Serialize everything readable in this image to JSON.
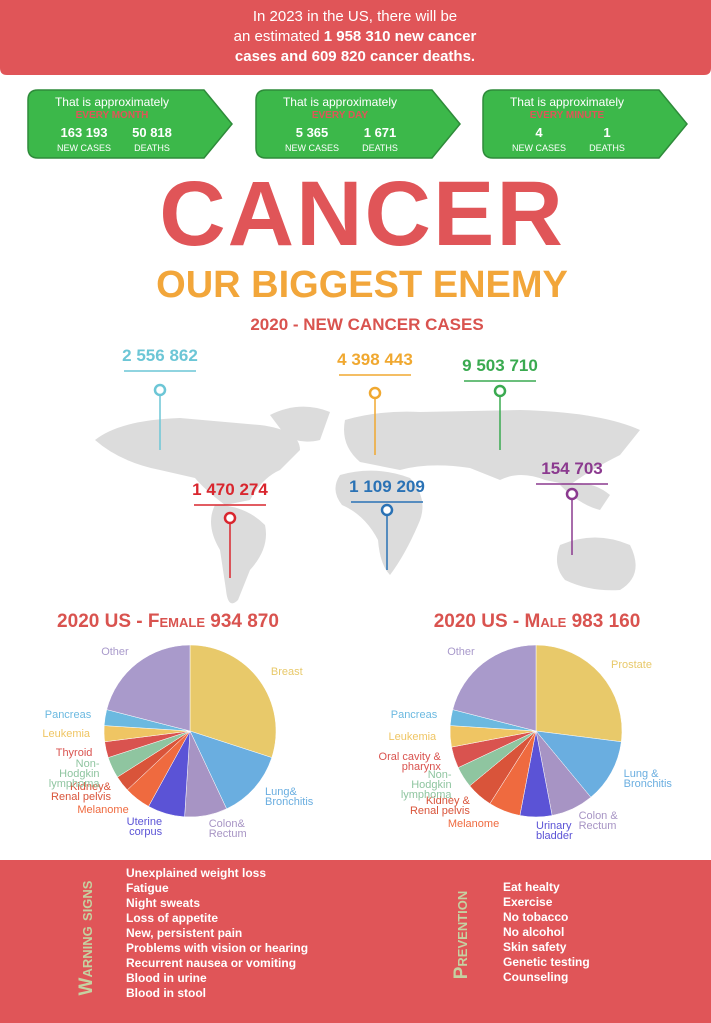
{
  "header": {
    "lines": [
      [
        {
          "text": "In 2023 in the US, there will be",
          "bold": false
        }
      ],
      [
        {
          "text": "an estimated",
          "bold": false
        },
        {
          "text": "1 958 310",
          "bold": true
        },
        {
          "text": "new cancer",
          "bold": true
        }
      ],
      [
        {
          "text": "cases and",
          "bold": true
        },
        {
          "text": "609 820",
          "bold": true
        },
        {
          "text": "cancer deaths.",
          "bold": true
        }
      ]
    ]
  },
  "stats": [
    {
      "intro": "That is approximately",
      "period": "EVERY MONTH",
      "cases": "163 193",
      "deaths": "50 818",
      "cases_label": "NEW CASES",
      "deaths_label": "DEATHS"
    },
    {
      "intro": "That is approximately",
      "period": "EVERY DAY",
      "cases": "5 365",
      "deaths": "1 671",
      "cases_label": "NEW CASES",
      "deaths_label": "DEATHS"
    },
    {
      "intro": "That is approximately",
      "period": "EVERY MINUTE",
      "cases": "4",
      "deaths": "1",
      "cases_label": "NEW CASES",
      "deaths_label": "DEATHS"
    }
  ],
  "title": "CANCER",
  "subtitle": "OUR BIGGEST ENEMY",
  "map": {
    "title": "2020 - NEW CANCER CASES",
    "markers": [
      {
        "value": "2 556 862",
        "color": "#6cc6d6"
      },
      {
        "value": "4 398 443",
        "color": "#f0a830"
      },
      {
        "value": "9 503 710",
        "color": "#3aaa50"
      },
      {
        "value": "154 703",
        "color": "#8b3a8f"
      },
      {
        "value": "1 470 274",
        "color": "#d9262e"
      },
      {
        "value": "1 109 209",
        "color": "#2a72b5"
      }
    ]
  },
  "chart_data": [
    {
      "type": "pie",
      "title": "2020 US - Female 934 870",
      "categories": [
        "Breast",
        "Lung& Bronchitis",
        "Colon& Rectum",
        "Uterine corpus",
        "Melanome",
        "Kidney& Renal pelvis",
        "Non-Hodgkin lymphoma",
        "Thyroid",
        "Leukemia",
        "Pancreas",
        "Other"
      ],
      "values": [
        30,
        13,
        8,
        7,
        5,
        3,
        4,
        3,
        3,
        3,
        21
      ],
      "colors": [
        "#e8c96a",
        "#6aaee0",
        "#a794c4",
        "#5b53d6",
        "#ef6a3f",
        "#d9543a",
        "#8fc5a0",
        "#d9534f",
        "#efc563",
        "#6bb9e0",
        "#a99acb"
      ]
    },
    {
      "type": "pie",
      "title": "2020 US - Male 983 160",
      "categories": [
        "Prostate",
        "Lung & Bronchitis",
        "Colon & Rectum",
        "Urinary bladder",
        "Melanome",
        "Kidney & Renal pelvis",
        "Non-Hodgkin lymphoma",
        "Oral cavity & pharynx",
        "Leukemia",
        "Pancreas",
        "Other"
      ],
      "values": [
        27,
        12,
        8,
        6,
        6,
        5,
        4,
        4,
        4,
        3,
        21
      ],
      "colors": [
        "#e8c96a",
        "#6aaee0",
        "#a794c4",
        "#5b53d6",
        "#ef6a3f",
        "#d9543a",
        "#8fc5a0",
        "#d9534f",
        "#efc563",
        "#6bb9e0",
        "#a99acb"
      ]
    }
  ],
  "footer": {
    "warning_title": "Warning signs",
    "warning": [
      "Unexplained weight loss",
      "Fatigue",
      "Night sweats",
      "Loss of appetite",
      "New, persistent pain",
      "Problems with vision or hearing",
      "Recurrent nausea or vomiting",
      "Blood in urine",
      "Blood in stool"
    ],
    "prevention_title": "Prevention",
    "prevention": [
      "Eat healty",
      "Exercise",
      "No tobacco",
      "No alcohol",
      "Skin safety",
      "Genetic testing",
      "Counseling"
    ]
  }
}
